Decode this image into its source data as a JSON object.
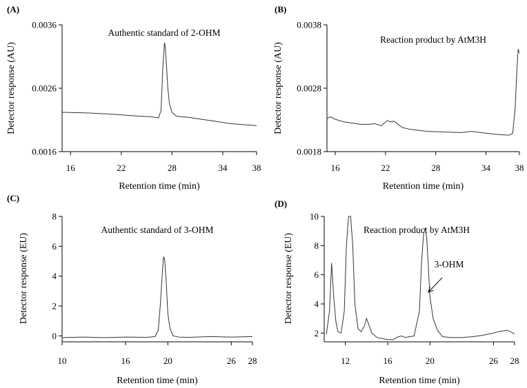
{
  "chart_data": [
    {
      "panel": "(A)",
      "type": "line",
      "annotation": "Authentic standard of 2-OHM",
      "xlabel": "Retention time (min)",
      "ylabel": "Detector response (AU)",
      "xlim": [
        15,
        38
      ],
      "ylim": [
        0.0016,
        0.0036
      ],
      "xticks": [
        16,
        22,
        28,
        34,
        38
      ],
      "yticks": [
        0.0016,
        0.0026,
        0.0036
      ],
      "ytick_labels": [
        "0.0016",
        "0.0026",
        "0.0036"
      ],
      "series": [
        {
          "x": [
            15,
            18,
            21,
            24,
            25.5,
            26.4,
            26.7,
            26.9,
            27.0,
            27.1,
            27.2,
            27.35,
            27.5,
            27.7,
            28.0,
            28.5,
            29.0,
            30.0,
            31.0,
            33.0,
            35.0,
            38.0
          ],
          "y": [
            0.00222,
            0.00221,
            0.00219,
            0.00216,
            0.00215,
            0.00213,
            0.00225,
            0.0029,
            0.0031,
            0.00332,
            0.00325,
            0.00295,
            0.0026,
            0.00235,
            0.00222,
            0.00216,
            0.00215,
            0.00214,
            0.00212,
            0.00208,
            0.00204,
            0.00201
          ]
        }
      ]
    },
    {
      "panel": "(B)",
      "type": "line",
      "annotation": "Reaction product by AtM3H",
      "xlabel": "Retention time (min)",
      "ylabel": "Detector response (AU)",
      "xlim": [
        15,
        38
      ],
      "ylim": [
        0.0018,
        0.0038
      ],
      "xticks": [
        16,
        22,
        28,
        34,
        38
      ],
      "yticks": [
        0.0018,
        0.0028,
        0.0038
      ],
      "ytick_labels": [
        "0.0018",
        "0.0028",
        "0.0038"
      ],
      "series": [
        {
          "x": [
            15,
            15.4,
            16,
            17,
            18,
            19,
            20,
            20.7,
            21.5,
            22.2,
            22.6,
            23.0,
            23.5,
            24,
            25,
            27,
            29,
            31,
            32.3,
            32.8,
            34,
            35.5,
            36.8,
            37.2,
            37.5,
            37.7,
            37.85,
            38
          ],
          "y": [
            0.00232,
            0.00235,
            0.00231,
            0.00227,
            0.00225,
            0.00223,
            0.00223,
            0.00224,
            0.00221,
            0.00229,
            0.00227,
            0.00228,
            0.00223,
            0.00218,
            0.00215,
            0.00212,
            0.00211,
            0.0021,
            0.00212,
            0.00211,
            0.00209,
            0.00207,
            0.00206,
            0.00209,
            0.0025,
            0.0031,
            0.00342,
            0.00335
          ]
        }
      ]
    },
    {
      "panel": "(C)",
      "type": "line",
      "annotation": "Authentic standard of 3-OHM",
      "xlabel": "Retention time (min)",
      "ylabel": "Detector response (EU)",
      "xlim": [
        10,
        28
      ],
      "ylim": [
        -0.4,
        8
      ],
      "xticks": [
        10,
        16,
        20,
        26,
        28
      ],
      "yticks": [
        0,
        2,
        4,
        6,
        8
      ],
      "ytick_labels": [
        "0",
        "2",
        "4",
        "6",
        "8"
      ],
      "series": [
        {
          "x": [
            10,
            12,
            14,
            16,
            18,
            18.8,
            19.1,
            19.3,
            19.5,
            19.6,
            19.7,
            19.85,
            20.0,
            20.2,
            20.5,
            21,
            22,
            24,
            26,
            28
          ],
          "y": [
            -0.12,
            -0.08,
            -0.12,
            -0.08,
            -0.1,
            -0.05,
            0.4,
            2.2,
            4.5,
            5.3,
            5.1,
            3.6,
            1.5,
            0.5,
            0.0,
            -0.08,
            -0.1,
            -0.05,
            -0.08,
            -0.05
          ]
        }
      ]
    },
    {
      "panel": "(D)",
      "type": "line",
      "annotation": "Reaction product by AtM3H",
      "peak_label": "3-OHM",
      "xlabel": "Retention time (min)",
      "ylabel": "Detector response (EU)",
      "xlim": [
        10,
        28
      ],
      "ylim": [
        1.4,
        10
      ],
      "xticks": [
        12,
        16,
        20,
        26,
        28
      ],
      "yticks": [
        2,
        4,
        6,
        8,
        10
      ],
      "ytick_labels": [
        "2",
        "4",
        "6",
        "8",
        "10"
      ],
      "series": [
        {
          "x": [
            10.2,
            10.5,
            10.7,
            10.9,
            11.1,
            11.3,
            11.6,
            11.9,
            12.1,
            12.3,
            12.5,
            12.7,
            12.9,
            13.2,
            13.5,
            13.8,
            14.0,
            14.2,
            14.5,
            15,
            16,
            16.5,
            17,
            17.3,
            17.7,
            18,
            18.5,
            19.0,
            19.2,
            19.4,
            19.55,
            19.7,
            19.85,
            20.0,
            20.3,
            20.7,
            21.2,
            22,
            23,
            24,
            25,
            26,
            26.5,
            27.3,
            28
          ],
          "y": [
            1.9,
            3.5,
            6.8,
            4.5,
            2.8,
            2.1,
            2.0,
            3.5,
            8.0,
            10.0,
            10.0,
            8.0,
            4.0,
            2.3,
            2.1,
            2.5,
            3.0,
            2.6,
            2.0,
            1.7,
            1.55,
            1.55,
            1.75,
            1.8,
            1.7,
            1.75,
            1.8,
            3.5,
            6.8,
            8.8,
            9.2,
            8.5,
            6.5,
            4.5,
            3.0,
            2.2,
            1.75,
            1.7,
            1.7,
            1.75,
            1.85,
            2.0,
            2.1,
            2.2,
            1.95
          ]
        }
      ]
    }
  ]
}
